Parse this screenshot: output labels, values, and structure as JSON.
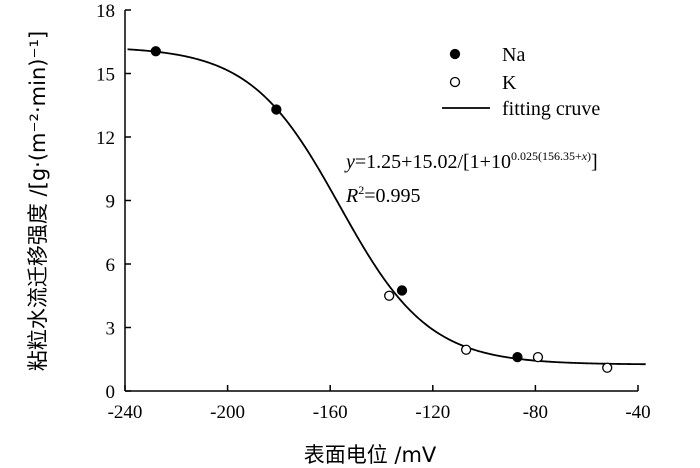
{
  "chart_data": {
    "type": "scatter",
    "xlabel": "表面电位 /mV",
    "ylabel": "粘粒水流迁移强度 /[g·(m⁻²·min)⁻¹]",
    "xlim": [
      -240,
      -40
    ],
    "ylim": [
      0,
      18
    ],
    "xticks": [
      -240,
      -200,
      -160,
      -120,
      -80,
      -40
    ],
    "yticks": [
      0,
      3,
      6,
      9,
      12,
      15,
      18
    ],
    "grid": false,
    "legend_position": "top-right",
    "series": [
      {
        "name": "Na",
        "marker": "filled-circle",
        "color": "#000000",
        "points": [
          {
            "x": -228,
            "y": 16.05
          },
          {
            "x": -181,
            "y": 13.3
          },
          {
            "x": -132,
            "y": 4.75
          },
          {
            "x": -87,
            "y": 1.6
          }
        ]
      },
      {
        "name": "K",
        "marker": "open-circle",
        "color": "#000000",
        "points": [
          {
            "x": -137,
            "y": 4.5
          },
          {
            "x": -107,
            "y": 1.95
          },
          {
            "x": -79,
            "y": 1.6
          },
          {
            "x": -52,
            "y": 1.1
          }
        ]
      },
      {
        "name": "fitting cruve",
        "type": "line",
        "color": "#000000",
        "model": {
          "a": 1.25,
          "b": 15.02,
          "k": 0.025,
          "c": 156.35
        },
        "x_range": [
          -239,
          -37
        ]
      }
    ],
    "annotations": {
      "equation_prefix": "y",
      "equation_body": "=1.25+15.02/[1+10",
      "equation_exponent": "0.025(156.35+",
      "equation_exponent_var": "x",
      "equation_exponent_close": ")",
      "equation_close": "]",
      "r2_prefix": "R",
      "r2_sup": "2",
      "r2_value": "=0.995"
    }
  }
}
